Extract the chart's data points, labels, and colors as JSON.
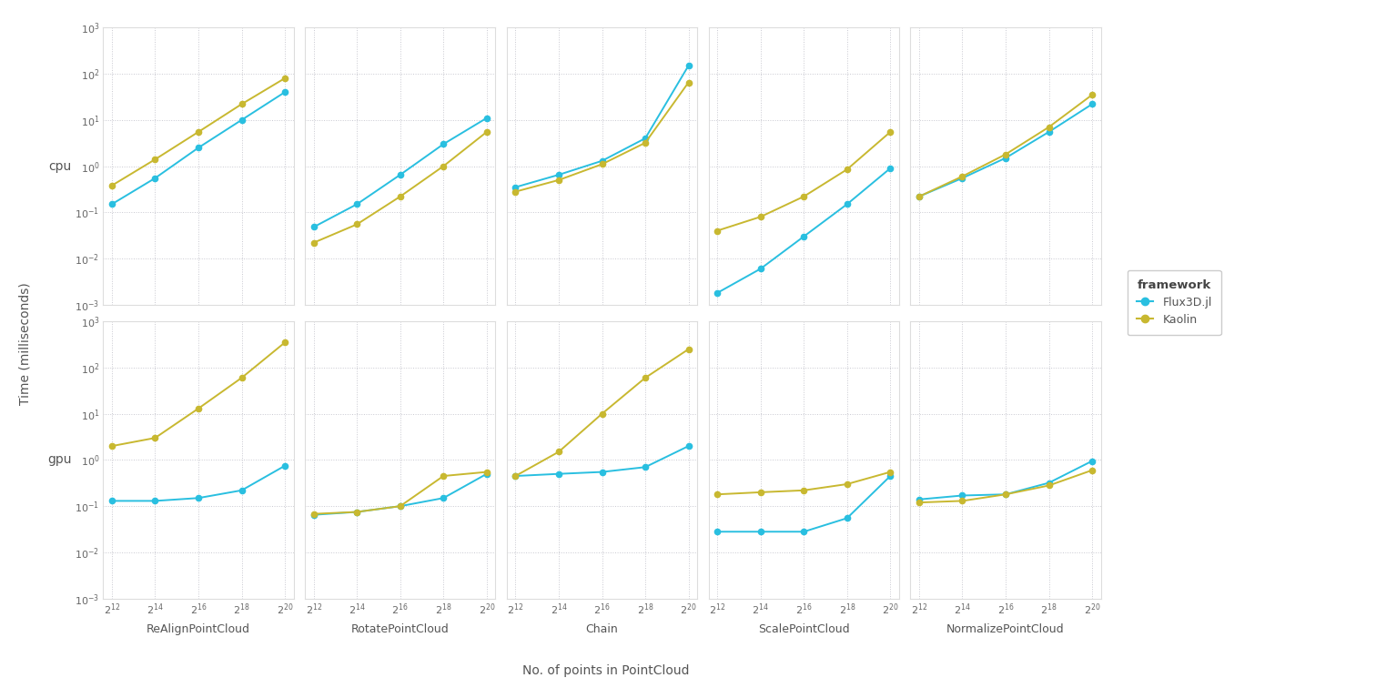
{
  "transforms": [
    "ReAlignPointCloud",
    "RotatePointCloud",
    "Chain",
    "ScalePointCloud",
    "NormalizePointCloud"
  ],
  "x_vals": [
    4096,
    16384,
    65536,
    262144,
    1048576
  ],
  "flux_color": "#29bfe0",
  "kaolin_color": "#c8b830",
  "cpu_data": {
    "ReAlignPointCloud": {
      "Flux3D.jl": [
        0.15,
        0.55,
        2.5,
        10.0,
        40.0
      ],
      "Kaolin": [
        0.38,
        1.4,
        5.5,
        22.0,
        80.0
      ]
    },
    "RotatePointCloud": {
      "Flux3D.jl": [
        0.048,
        0.15,
        0.65,
        3.0,
        11.0
      ],
      "Kaolin": [
        0.022,
        0.055,
        0.22,
        1.0,
        5.5
      ]
    },
    "Chain": {
      "Flux3D.jl": [
        0.35,
        0.65,
        1.3,
        4.0,
        150.0
      ],
      "Kaolin": [
        0.28,
        0.5,
        1.1,
        3.2,
        65.0
      ]
    },
    "ScalePointCloud": {
      "Flux3D.jl": [
        0.0018,
        0.006,
        0.03,
        0.15,
        0.9
      ],
      "Kaolin": [
        0.04,
        0.08,
        0.22,
        0.85,
        5.5
      ]
    },
    "NormalizePointCloud": {
      "Flux3D.jl": [
        0.22,
        0.55,
        1.5,
        5.5,
        22.0
      ],
      "Kaolin": [
        0.22,
        0.6,
        1.8,
        7.0,
        35.0
      ]
    }
  },
  "gpu_data": {
    "ReAlignPointCloud": {
      "Flux3D.jl": [
        0.13,
        0.13,
        0.15,
        0.22,
        0.75
      ],
      "Kaolin": [
        2.0,
        3.0,
        13.0,
        60.0,
        350.0
      ]
    },
    "RotatePointCloud": {
      "Flux3D.jl": [
        0.065,
        0.075,
        0.1,
        0.15,
        0.5
      ],
      "Kaolin": [
        0.068,
        0.075,
        0.1,
        0.45,
        0.55
      ]
    },
    "Chain": {
      "Flux3D.jl": [
        0.45,
        0.5,
        0.55,
        0.7,
        2.0
      ],
      "Kaolin": [
        0.45,
        1.5,
        10.0,
        60.0,
        250.0
      ]
    },
    "ScalePointCloud": {
      "Flux3D.jl": [
        0.028,
        0.028,
        0.028,
        0.055,
        0.45
      ],
      "Kaolin": [
        0.18,
        0.2,
        0.22,
        0.3,
        0.55
      ]
    },
    "NormalizePointCloud": {
      "Flux3D.jl": [
        0.14,
        0.17,
        0.18,
        0.32,
        0.95
      ],
      "Kaolin": [
        0.12,
        0.13,
        0.18,
        0.28,
        0.6
      ]
    }
  },
  "ylabel": "Time (milliseconds)",
  "xlabel": "No. of points in PointCloud",
  "legend_title": "framework",
  "legend_labels": [
    "Flux3D.jl",
    "Kaolin"
  ],
  "row_labels": [
    "cpu",
    "gpu"
  ]
}
